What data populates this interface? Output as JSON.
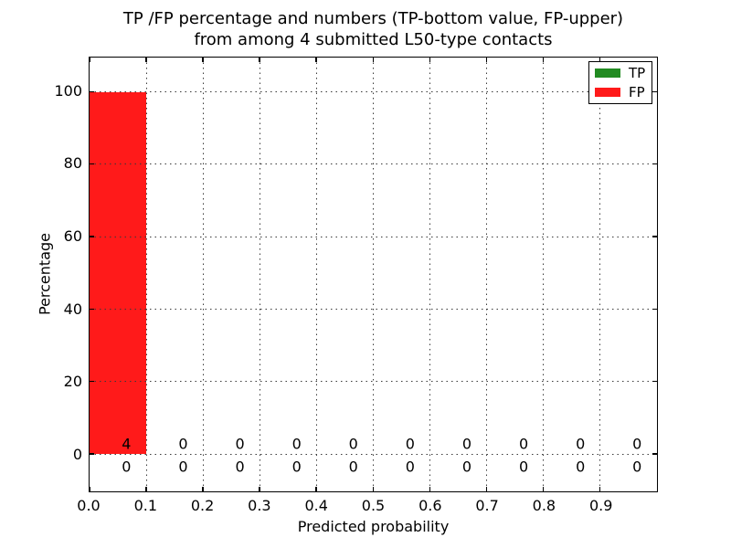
{
  "figure": {
    "title_line1": "TP /FP percentage and numbers (TP-bottom value, FP-upper)",
    "title_line2": "from among 4 submitted L50-type contacts"
  },
  "chart_data": {
    "type": "bar",
    "subtype": "stacked-histogram",
    "title": "TP /FP percentage and numbers (TP-bottom value, FP-upper) from among 4 submitted L50-type contacts",
    "xlabel": "Predicted probability",
    "ylabel": "Percentage",
    "xlim": [
      0.0,
      1.0
    ],
    "ylim": [
      -10.3,
      109.5
    ],
    "grid": "dotted, both axes, drawn above bars",
    "legend_position": "upper right",
    "legend": [
      {
        "name": "TP",
        "color": "#228b22"
      },
      {
        "name": "FP",
        "color": "#ff1a1a"
      }
    ],
    "xticks": [
      "0.0",
      "0.1",
      "0.2",
      "0.3",
      "0.4",
      "0.5",
      "0.6",
      "0.7",
      "0.8",
      "0.9"
    ],
    "yticks": [
      "0",
      "20",
      "40",
      "60",
      "80",
      "100"
    ],
    "bins": {
      "start": 0.0,
      "width": 0.1,
      "count": 10
    },
    "series": [
      {
        "name": "TP",
        "color": "#228b22",
        "percent": [
          0,
          0,
          0,
          0,
          0,
          0,
          0,
          0,
          0,
          0
        ],
        "counts": [
          0,
          0,
          0,
          0,
          0,
          0,
          0,
          0,
          0,
          0
        ]
      },
      {
        "name": "FP",
        "color": "#ff1a1a",
        "percent": [
          100,
          0,
          0,
          0,
          0,
          0,
          0,
          0,
          0,
          0
        ],
        "counts": [
          4,
          0,
          0,
          0,
          0,
          0,
          0,
          0,
          0,
          0
        ]
      }
    ],
    "annotation_rows": {
      "upper_fp_counts": [
        "4",
        "0",
        "0",
        "0",
        "0",
        "0",
        "0",
        "0",
        "0",
        "0"
      ],
      "lower_tp_counts": [
        "0",
        "0",
        "0",
        "0",
        "0",
        "0",
        "0",
        "0",
        "0",
        "0"
      ]
    },
    "total_contacts": "4"
  }
}
